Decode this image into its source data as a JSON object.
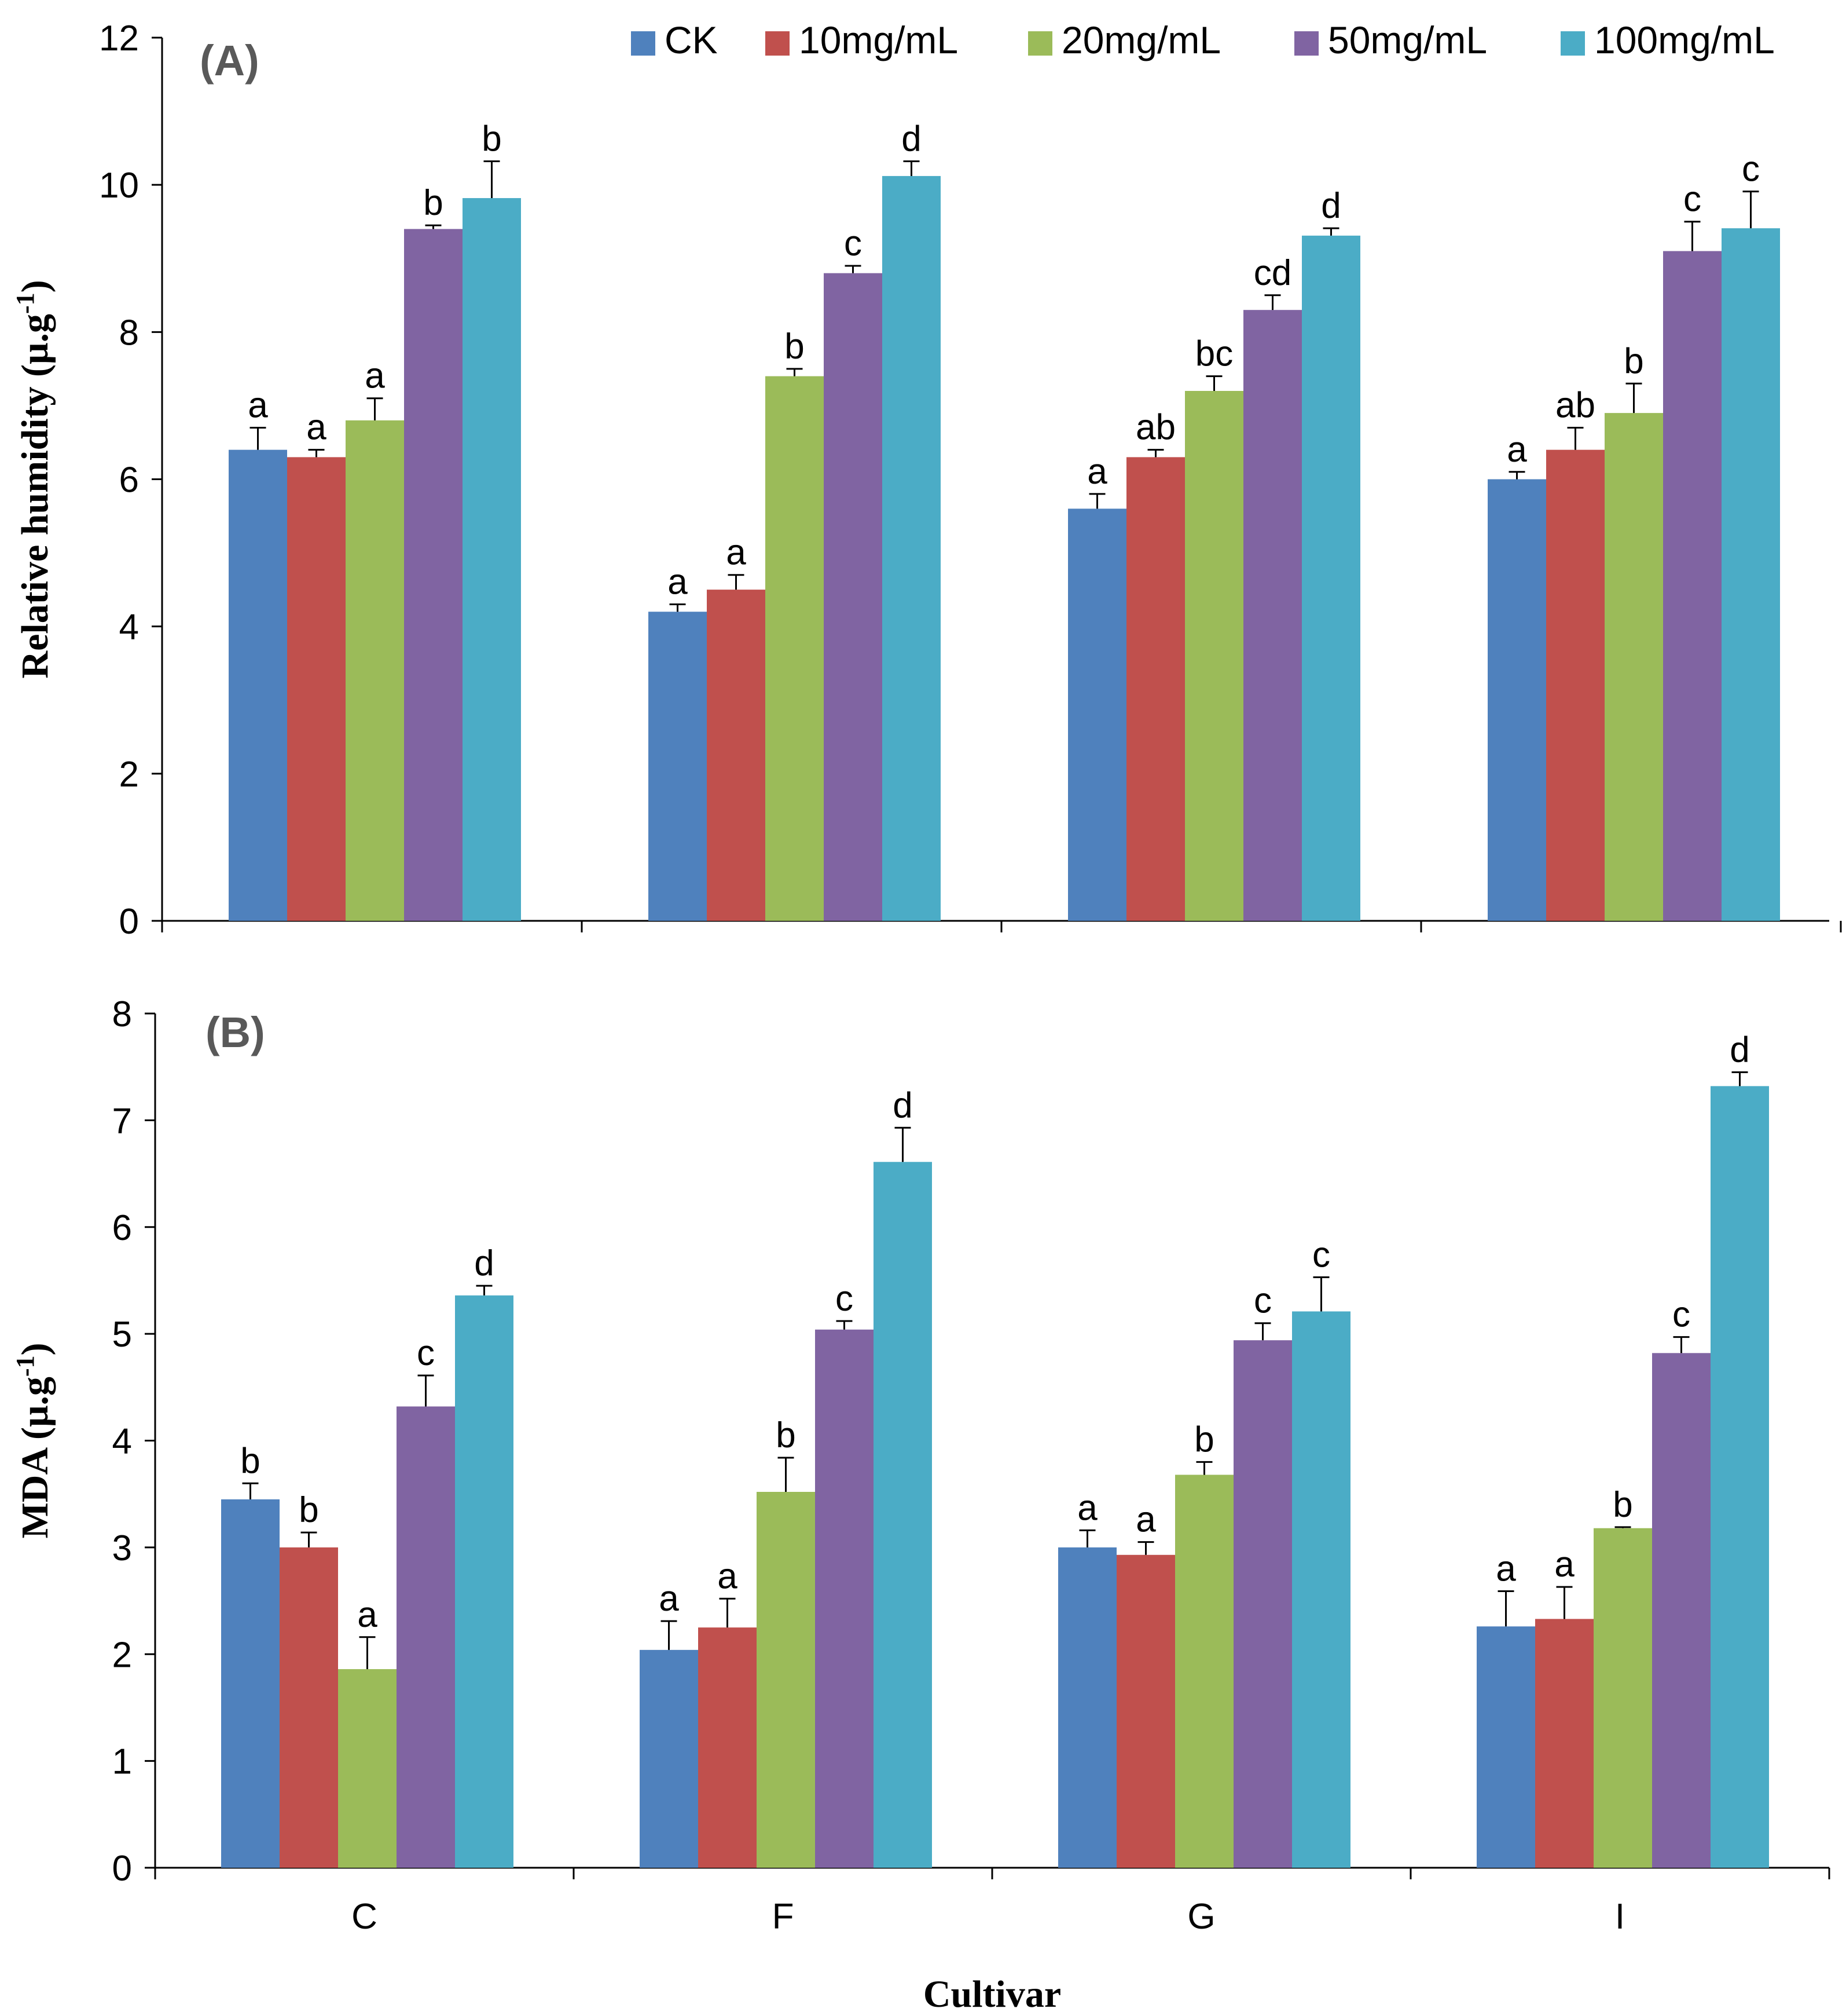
{
  "legend": {
    "items": [
      {
        "label": "CK",
        "color": "#4f81bd"
      },
      {
        "label": "10mg/mL",
        "color": "#c0504d"
      },
      {
        "label": "20mg/mL",
        "color": "#9bbb59"
      },
      {
        "label": "50mg/mL",
        "color": "#8064a2"
      },
      {
        "label": "100mg/mL",
        "color": "#4bacc6"
      }
    ]
  },
  "chart_data": [
    {
      "type": "bar",
      "panel_label": "(A)",
      "ylabel": "Relative humidity (μ.g",
      "ylabel_sup": "-1",
      "ylabel_close": ")",
      "xlabel": "",
      "ylim": [
        0,
        12
      ],
      "yticks": [
        "0",
        "2",
        "4",
        "6",
        "8",
        "10",
        "12"
      ],
      "categories": [
        "C",
        "F",
        "G",
        "I"
      ],
      "show_category_labels": false,
      "series": [
        {
          "name": "CK",
          "color": "#4f81bd",
          "values": [
            6.4,
            4.2,
            5.6,
            6.0
          ],
          "errors": [
            0.3,
            0.1,
            0.2,
            0.1
          ],
          "letters": [
            "a",
            "a",
            "a",
            "a"
          ]
        },
        {
          "name": "10mg/mL",
          "color": "#c0504d",
          "values": [
            6.3,
            4.5,
            6.3,
            6.4
          ],
          "errors": [
            0.1,
            0.2,
            0.1,
            0.3
          ],
          "letters": [
            "a",
            "a",
            "ab",
            "ab"
          ]
        },
        {
          "name": "20mg/mL",
          "color": "#9bbb59",
          "values": [
            6.8,
            7.4,
            7.2,
            6.9
          ],
          "errors": [
            0.3,
            0.1,
            0.2,
            0.4
          ],
          "letters": [
            "a",
            "b",
            "bc",
            "b"
          ]
        },
        {
          "name": "50mg/mL",
          "color": "#8064a2",
          "values": [
            9.4,
            8.8,
            8.3,
            9.1
          ],
          "errors": [
            0.05,
            0.1,
            0.2,
            0.4
          ],
          "letters": [
            "b",
            "c",
            "cd",
            "c"
          ]
        },
        {
          "name": "100mg/mL",
          "color": "#4bacc6",
          "values": [
            9.82,
            10.12,
            9.31,
            9.41
          ],
          "errors": [
            0.5,
            0.2,
            0.1,
            0.5
          ],
          "letters": [
            "b",
            "d",
            "d",
            "c"
          ]
        }
      ]
    },
    {
      "type": "bar",
      "panel_label": "(B)",
      "ylabel": "MDA (μ.g",
      "ylabel_sup": "-1",
      "ylabel_close": ")",
      "xlabel": "Cultivar",
      "ylim": [
        0,
        8
      ],
      "yticks": [
        "0",
        "1",
        "2",
        "3",
        "4",
        "5",
        "6",
        "7",
        "8"
      ],
      "categories": [
        "C",
        "F",
        "G",
        "I"
      ],
      "show_category_labels": true,
      "series": [
        {
          "name": "CK",
          "color": "#4f81bd",
          "values": [
            3.45,
            2.04,
            3.0,
            2.26
          ],
          "errors": [
            0.15,
            0.27,
            0.16,
            0.33
          ],
          "letters": [
            "b",
            "a",
            "a",
            "a"
          ]
        },
        {
          "name": "10mg/mL",
          "color": "#c0504d",
          "values": [
            3.0,
            2.25,
            2.93,
            2.33
          ],
          "errors": [
            0.14,
            0.27,
            0.12,
            0.3
          ],
          "letters": [
            "b",
            "a",
            "a",
            "a"
          ]
        },
        {
          "name": "20mg/mL",
          "color": "#9bbb59",
          "values": [
            1.86,
            3.52,
            3.68,
            3.18
          ],
          "errors": [
            0.3,
            0.32,
            0.12,
            0.01
          ],
          "letters": [
            "a",
            "b",
            "b",
            "b"
          ]
        },
        {
          "name": "50mg/mL",
          "color": "#8064a2",
          "values": [
            4.32,
            5.04,
            4.94,
            4.82
          ],
          "errors": [
            0.29,
            0.08,
            0.16,
            0.15
          ],
          "letters": [
            "c",
            "c",
            "c",
            "c"
          ]
        },
        {
          "name": "100mg/mL",
          "color": "#4bacc6",
          "values": [
            5.36,
            6.61,
            5.21,
            7.32
          ],
          "errors": [
            0.09,
            0.32,
            0.32,
            0.13
          ],
          "letters": [
            "d",
            "d",
            "c",
            "d"
          ]
        }
      ]
    }
  ]
}
